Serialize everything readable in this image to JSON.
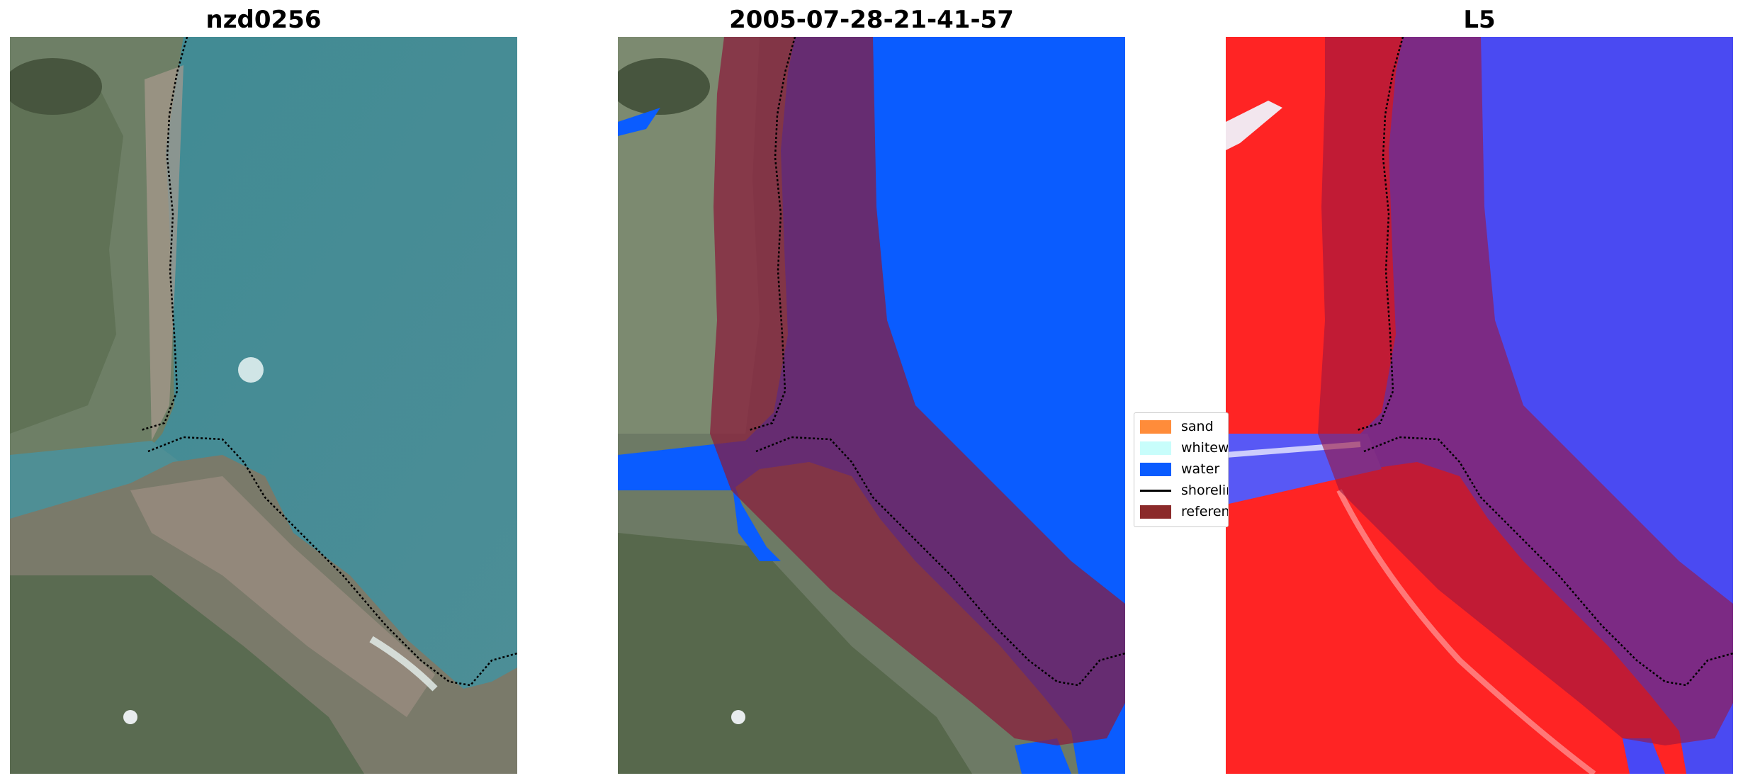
{
  "titles": {
    "left": "nzd0256",
    "middle": "2005-07-28-21-41-57",
    "right": "L5"
  },
  "legend": {
    "items": [
      {
        "label": "sand",
        "color": "#ff8c3a",
        "kind": "patch"
      },
      {
        "label": "whitewater",
        "color": "#c8fdfb",
        "kind": "patch"
      },
      {
        "label": "water",
        "color": "#0a5cff",
        "kind": "patch"
      },
      {
        "label": "shoreline",
        "color": "#000000",
        "kind": "line"
      },
      {
        "label": "reference",
        "color": "#8b2a2a",
        "kind": "patch"
      }
    ]
  },
  "colors": {
    "water_class": "#0a5cff",
    "buffer_overlay": "#8b1a3a",
    "shoreline": "#000000",
    "index_positive": "#ff1f1f",
    "index_negative": "#2a2af0"
  }
}
